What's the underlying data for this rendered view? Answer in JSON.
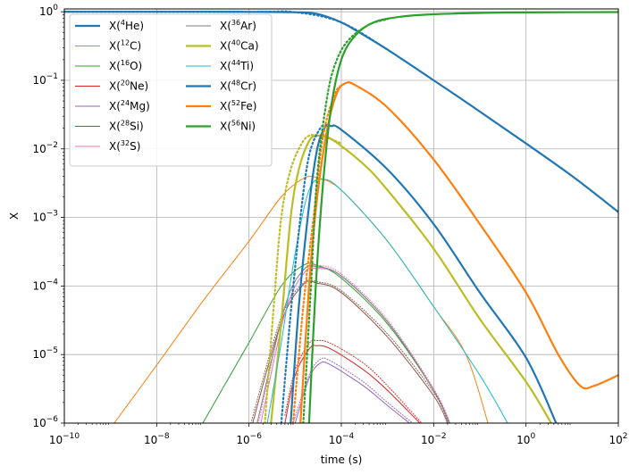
{
  "chart_data": {
    "type": "line",
    "xlabel": "time (s)",
    "ylabel": "X",
    "xscale": "log",
    "yscale": "log",
    "xlim": [
      1e-10,
      100
    ],
    "ylim": [
      1e-06,
      1.1
    ],
    "grid": true,
    "legend_position": "top-left",
    "legend_columns": 2,
    "x_tick_labels": [
      "10^-10",
      "10^-8",
      "10^-6",
      "10^-4",
      "10^-2",
      "10^0",
      "10^2"
    ],
    "y_tick_labels": [
      "10^-6",
      "10^-5",
      "10^-4",
      "10^-3",
      "10^-2",
      "10^-1",
      "10^0"
    ],
    "series": [
      {
        "name": "X(4He)",
        "base": "X(",
        "sup": "4",
        "sym": "He)",
        "color": "#1f77b4",
        "width": 2.2,
        "points": [
          [
            1e-10,
            1.0
          ],
          [
            1e-07,
            0.999
          ],
          [
            1e-06,
            0.997
          ],
          [
            1e-05,
            0.985
          ],
          [
            3e-05,
            0.93
          ],
          [
            0.0001,
            0.7
          ],
          [
            0.0003,
            0.46
          ],
          [
            0.001,
            0.28
          ],
          [
            0.01,
            0.1
          ],
          [
            0.1,
            0.035
          ],
          [
            1,
            0.012
          ],
          [
            10,
            0.004
          ],
          [
            100,
            0.0012
          ]
        ],
        "dotted": [
          [
            1e-10,
            1.0
          ],
          [
            1e-06,
            0.997
          ],
          [
            1e-05,
            0.985
          ],
          [
            0.0001,
            0.7
          ],
          [
            0.001,
            0.28
          ]
        ]
      },
      {
        "name": "X(12C)",
        "base": "X(",
        "sup": "12",
        "sym": "C)",
        "color": "#ff7f0e",
        "width": 1.0,
        "points": [
          [
            1.2e-09,
            1e-06
          ],
          [
            1e-08,
            7e-06
          ],
          [
            1e-07,
            6e-05
          ],
          [
            1e-06,
            0.00045
          ],
          [
            5e-06,
            0.002
          ],
          [
            1.5e-05,
            0.0037
          ],
          [
            3e-05,
            0.0038
          ],
          [
            0.0001,
            0.0025
          ],
          [
            0.001,
            0.00045
          ],
          [
            0.01,
            5e-05
          ],
          [
            0.05,
            1e-05
          ],
          [
            0.15,
            1e-06
          ]
        ]
      },
      {
        "name": "X(16O)",
        "base": "X(",
        "sup": "16",
        "sym": "O)",
        "color": "#2ca02c",
        "width": 1.0,
        "points": [
          [
            1e-07,
            1e-06
          ],
          [
            1e-06,
            1.5e-05
          ],
          [
            5e-06,
            0.0001
          ],
          [
            1.5e-05,
            0.0002
          ],
          [
            3e-05,
            0.0002
          ],
          [
            0.0001,
            0.00013
          ],
          [
            0.001,
            2.8e-05
          ],
          [
            0.01,
            3e-06
          ],
          [
            0.022,
            1e-06
          ]
        ]
      },
      {
        "name": "X(20Ne)",
        "base": "X(",
        "sup": "20",
        "sym": "Ne)",
        "color": "#d62728",
        "width": 1.0,
        "points": [
          [
            6e-06,
            1e-06
          ],
          [
            1e-05,
            5e-06
          ],
          [
            2e-05,
            1.2e-05
          ],
          [
            3e-05,
            1.35e-05
          ],
          [
            6e-05,
            1.2e-05
          ],
          [
            0.0003,
            6e-06
          ],
          [
            0.001,
            3e-06
          ],
          [
            0.005,
            1e-06
          ]
        ],
        "dotted": [
          [
            6e-06,
            1.3e-06
          ],
          [
            1e-05,
            6e-06
          ],
          [
            2e-05,
            1.45e-05
          ],
          [
            3e-05,
            1.6e-05
          ],
          [
            6e-05,
            1.45e-05
          ],
          [
            0.0003,
            7.5e-06
          ],
          [
            0.001,
            3.5e-06
          ],
          [
            0.0055,
            1e-06
          ]
        ]
      },
      {
        "name": "X(24Mg)",
        "base": "X(",
        "sup": "24",
        "sym": "Mg)",
        "color": "#9467bd",
        "width": 1.0,
        "points": [
          [
            1e-05,
            1e-06
          ],
          [
            2e-05,
            4.5e-06
          ],
          [
            3.5e-05,
            7.5e-06
          ],
          [
            6e-05,
            7e-06
          ],
          [
            0.0003,
            3.5e-06
          ],
          [
            0.001,
            1.8e-06
          ],
          [
            0.003,
            1e-06
          ]
        ],
        "dotted": [
          [
            9e-06,
            1e-06
          ],
          [
            2e-05,
            5e-06
          ],
          [
            3.5e-05,
            8.5e-06
          ],
          [
            6e-05,
            8e-06
          ],
          [
            0.0003,
            4e-06
          ],
          [
            0.001,
            2e-06
          ],
          [
            0.0035,
            1e-06
          ]
        ]
      },
      {
        "name": "X(28Si)",
        "base": "X(",
        "sup": "28",
        "sym": "Si)",
        "color": "#8c564b",
        "width": 1.0,
        "points": [
          [
            1.2e-06,
            1e-06
          ],
          [
            5e-06,
            3e-05
          ],
          [
            1.5e-05,
            0.000105
          ],
          [
            3e-05,
            0.00011
          ],
          [
            0.0001,
            8e-05
          ],
          [
            0.001,
            1.8e-05
          ],
          [
            0.01,
            2.5e-06
          ],
          [
            0.02,
            1e-06
          ]
        ],
        "dotted": [
          [
            1.1e-06,
            1e-06
          ],
          [
            5e-06,
            3.5e-05
          ],
          [
            1.5e-05,
            0.00011
          ],
          [
            3e-05,
            0.000115
          ],
          [
            0.0001,
            8.5e-05
          ],
          [
            0.001,
            2e-05
          ],
          [
            0.01,
            2.8e-06
          ],
          [
            0.021,
            1e-06
          ]
        ]
      },
      {
        "name": "X(32S)",
        "base": "X(",
        "sup": "32",
        "sym": "S)",
        "color": "#e377c2",
        "width": 1.0,
        "points": [
          [
            1.8e-06,
            1e-06
          ],
          [
            6e-06,
            4e-05
          ],
          [
            1.5e-05,
            0.00015
          ],
          [
            3e-05,
            0.00018
          ],
          [
            0.0001,
            0.00014
          ],
          [
            0.001,
            3e-05
          ],
          [
            0.01,
            3e-06
          ],
          [
            0.022,
            1e-06
          ]
        ],
        "dotted": [
          [
            1.6e-06,
            1e-06
          ],
          [
            6e-06,
            5e-05
          ],
          [
            1.5e-05,
            0.00017
          ],
          [
            3e-05,
            0.0002
          ],
          [
            0.0001,
            0.00015
          ],
          [
            0.001,
            3.2e-05
          ],
          [
            0.01,
            3.2e-06
          ],
          [
            0.023,
            1e-06
          ]
        ]
      },
      {
        "name": "X(36Ar)",
        "base": "X(",
        "sup": "36",
        "sym": "Ar)",
        "color": "#7f7f7f",
        "width": 1.0,
        "points": [
          [
            1.5e-06,
            1e-06
          ],
          [
            6e-06,
            5e-05
          ],
          [
            1.5e-05,
            0.00017
          ],
          [
            3e-05,
            0.00019
          ],
          [
            0.0001,
            0.00014
          ],
          [
            0.001,
            3e-05
          ],
          [
            0.01,
            3e-06
          ],
          [
            0.022,
            1e-06
          ]
        ]
      },
      {
        "name": "X(40Ca)",
        "base": "X(",
        "sup": "40",
        "sym": "Ca)",
        "color": "#bcbd22",
        "width": 2.2,
        "points": [
          [
            3e-06,
            1e-06
          ],
          [
            5e-06,
            3e-05
          ],
          [
            8e-06,
            0.001
          ],
          [
            1.2e-05,
            0.005
          ],
          [
            2e-05,
            0.013
          ],
          [
            3e-05,
            0.0155
          ],
          [
            6e-05,
            0.014
          ],
          [
            0.0003,
            0.006
          ],
          [
            0.001,
            0.0025
          ],
          [
            0.01,
            0.00035
          ],
          [
            0.1,
            3.3e-05
          ],
          [
            1,
            4e-06
          ],
          [
            3.5,
            1e-06
          ]
        ],
        "dotted": [
          [
            2.2e-06,
            1e-06
          ],
          [
            3.5e-06,
            6e-05
          ],
          [
            5e-06,
            0.001
          ],
          [
            8e-06,
            0.005
          ],
          [
            1.5e-05,
            0.013
          ],
          [
            2.5e-05,
            0.016
          ],
          [
            5e-05,
            0.0145
          ],
          [
            0.0001,
            0.012
          ]
        ]
      },
      {
        "name": "X(44Ti)",
        "base": "X(",
        "sup": "44",
        "sym": "Ti)",
        "color": "#17becf",
        "width": 1.0,
        "points": [
          [
            2.5e-06,
            1e-06
          ],
          [
            5e-06,
            1.5e-05
          ],
          [
            1e-05,
            0.0003
          ],
          [
            2e-05,
            0.0025
          ],
          [
            4e-05,
            0.0036
          ],
          [
            0.0001,
            0.0025
          ],
          [
            0.001,
            0.00045
          ],
          [
            0.01,
            5e-05
          ],
          [
            0.1,
            5e-06
          ],
          [
            0.4,
            1e-06
          ]
        ]
      },
      {
        "name": "X(48Cr)",
        "base": "X(",
        "sup": "48",
        "sym": "Cr)",
        "color": "#1f77b4",
        "width": 2.2,
        "points": [
          [
            8e-06,
            1e-06
          ],
          [
            1.2e-05,
            5e-05
          ],
          [
            2e-05,
            0.0015
          ],
          [
            3e-05,
            0.01
          ],
          [
            4.5e-05,
            0.021
          ],
          [
            6e-05,
            0.0215
          ],
          [
            0.0001,
            0.019
          ],
          [
            0.001,
            0.005
          ],
          [
            0.01,
            0.0008
          ],
          [
            0.1,
            8e-05
          ],
          [
            1,
            9e-06
          ],
          [
            4.5,
            1e-06
          ]
        ],
        "dotted": [
          [
            5e-06,
            1e-06
          ],
          [
            8e-06,
            4e-05
          ],
          [
            1.3e-05,
            0.001
          ],
          [
            2e-05,
            0.008
          ],
          [
            3.5e-05,
            0.02
          ],
          [
            5e-05,
            0.022
          ]
        ]
      },
      {
        "name": "X(52Fe)",
        "base": "X(",
        "sup": "52",
        "sym": "Fe)",
        "color": "#ff7f0e",
        "width": 2.2,
        "points": [
          [
            1.3e-05,
            1e-06
          ],
          [
            2e-05,
            0.0001
          ],
          [
            3e-05,
            0.002
          ],
          [
            5e-05,
            0.02
          ],
          [
            8e-05,
            0.065
          ],
          [
            0.00012,
            0.09
          ],
          [
            0.0002,
            0.085
          ],
          [
            0.001,
            0.04
          ],
          [
            0.01,
            0.007
          ],
          [
            0.1,
            0.0008
          ],
          [
            1,
            8e-05
          ],
          [
            5,
            1e-05
          ],
          [
            15,
            3.5e-06
          ],
          [
            30,
            3.5e-06
          ],
          [
            100,
            5e-06
          ]
        ],
        "dotted": [
          [
            9e-06,
            1e-06
          ],
          [
            1.5e-05,
            5e-05
          ],
          [
            2.5e-05,
            0.001
          ],
          [
            4e-05,
            0.015
          ],
          [
            7e-05,
            0.06
          ],
          [
            0.0001,
            0.085
          ]
        ]
      },
      {
        "name": "X(56Ni)",
        "base": "X(",
        "sup": "56",
        "sym": "Ni)",
        "color": "#2ca02c",
        "width": 2.2,
        "points": [
          [
            2e-05,
            1e-06
          ],
          [
            2.8e-05,
            0.0001
          ],
          [
            4e-05,
            0.003
          ],
          [
            6e-05,
            0.04
          ],
          [
            0.0001,
            0.2
          ],
          [
            0.0002,
            0.45
          ],
          [
            0.0005,
            0.7
          ],
          [
            0.002,
            0.85
          ],
          [
            0.01,
            0.92
          ],
          [
            0.1,
            0.96
          ],
          [
            1,
            0.98
          ],
          [
            100,
            0.99
          ]
        ],
        "dotted": [
          [
            1.5e-05,
            1e-06
          ],
          [
            2.2e-05,
            0.0001
          ],
          [
            3e-05,
            0.004
          ],
          [
            5e-05,
            0.06
          ],
          [
            8e-05,
            0.2
          ],
          [
            0.00015,
            0.4
          ],
          [
            0.0004,
            0.65
          ],
          [
            0.001,
            0.78
          ]
        ]
      }
    ]
  }
}
